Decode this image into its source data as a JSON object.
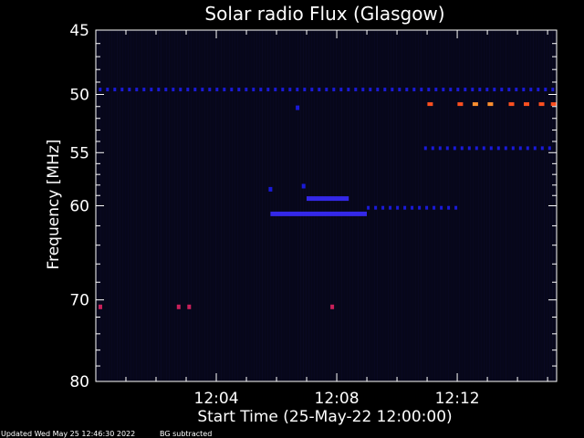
{
  "chart_data": {
    "type": "heatmap",
    "title": "Solar radio Flux (Glasgow)",
    "xlabel": "Start Time (25-May-22 12:00:00)",
    "ylabel": "Frequency [MHz]",
    "xlim": [
      0,
      15.3
    ],
    "ylim_display": [
      45,
      80
    ],
    "y_scale": "log",
    "x_tick_labels": [
      {
        "value": 4,
        "label": "12:04"
      },
      {
        "value": 8,
        "label": "12:08"
      },
      {
        "value": 12,
        "label": "12:12"
      }
    ],
    "x_minor_ticks": [
      1,
      2,
      3,
      5,
      6,
      7,
      9,
      10,
      11,
      13,
      14,
      15
    ],
    "y_tick_labels": [
      {
        "value": 45,
        "label": "45"
      },
      {
        "value": 50,
        "label": "50"
      },
      {
        "value": 55,
        "label": "55"
      },
      {
        "value": 60,
        "label": "60"
      },
      {
        "value": 70,
        "label": "70"
      },
      {
        "value": 80,
        "label": "80"
      }
    ],
    "y_minor_ticks": [
      46,
      47,
      48,
      49,
      51,
      52,
      53,
      54,
      56,
      57,
      58,
      59,
      62,
      64,
      66,
      68,
      72,
      74,
      76,
      78
    ],
    "colors": {
      "background": "#000000",
      "plot_background": "#07071a",
      "weak_signal": "#1a1ad8",
      "medium_signal": "#3a2cff",
      "strong_signal": "#ff5020",
      "peak_signal": "#ff9030",
      "burst_point": "#c8205a"
    },
    "bands": [
      {
        "freq": 49.6,
        "x_start": 0.1,
        "x_end": 15.2,
        "intensity": "weak",
        "dotted": true
      },
      {
        "freq": 54.6,
        "x_start": 10.9,
        "x_end": 15.2,
        "intensity": "weak",
        "dotted": true
      },
      {
        "freq": 60.8,
        "x_start": 5.8,
        "x_end": 9.0,
        "intensity": "medium",
        "dotted": false
      },
      {
        "freq": 60.2,
        "x_start": 9.0,
        "x_end": 12.0,
        "intensity": "weak",
        "dotted": true
      },
      {
        "freq": 59.3,
        "x_start": 7.0,
        "x_end": 8.4,
        "intensity": "medium",
        "dotted": false
      }
    ],
    "points": [
      {
        "x": 0.15,
        "freq": 70.8,
        "intensity": "burst"
      },
      {
        "x": 2.75,
        "freq": 70.8,
        "intensity": "burst"
      },
      {
        "x": 3.1,
        "freq": 70.8,
        "intensity": "burst"
      },
      {
        "x": 7.85,
        "freq": 70.8,
        "intensity": "burst"
      },
      {
        "x": 6.7,
        "freq": 51.1,
        "intensity": "weak"
      },
      {
        "x": 6.9,
        "freq": 58.1,
        "intensity": "weak"
      },
      {
        "x": 5.8,
        "freq": 58.4,
        "intensity": "weak"
      },
      {
        "x": 11.1,
        "freq": 50.8,
        "intensity": "strong"
      },
      {
        "x": 12.1,
        "freq": 50.8,
        "intensity": "strong"
      },
      {
        "x": 12.6,
        "freq": 50.8,
        "intensity": "peak"
      },
      {
        "x": 13.1,
        "freq": 50.8,
        "intensity": "peak"
      },
      {
        "x": 13.8,
        "freq": 50.8,
        "intensity": "strong"
      },
      {
        "x": 14.3,
        "freq": 50.8,
        "intensity": "strong"
      },
      {
        "x": 14.8,
        "freq": 50.8,
        "intensity": "strong"
      },
      {
        "x": 15.2,
        "freq": 50.8,
        "intensity": "strong"
      }
    ]
  },
  "footer": {
    "updated_text": "Updated Wed May 25 12:46:30 2022",
    "bg_text": "BG subtracted"
  }
}
